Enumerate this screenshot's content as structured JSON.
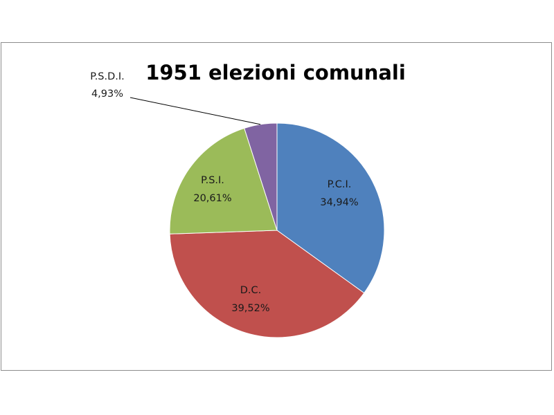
{
  "chart_data": {
    "type": "pie",
    "title": "1951 elezioni comunali",
    "categories": [
      "P.C.I.",
      "D.C.",
      "P.S.I.",
      "P.S.D.I."
    ],
    "values": [
      34.94,
      39.52,
      20.61,
      4.93
    ],
    "value_labels": [
      "34,94%",
      "39,52%",
      "20,61%",
      "4,93%"
    ],
    "colors": [
      "#4f81bd",
      "#c0504d",
      "#9bbb59",
      "#8064a2"
    ],
    "start_angle": "12 o'clock",
    "direction": "clockwise",
    "legend": "none"
  }
}
